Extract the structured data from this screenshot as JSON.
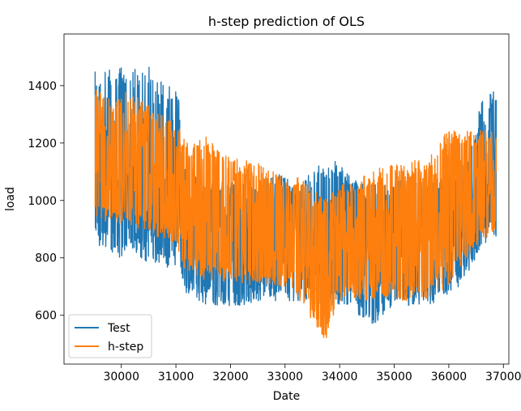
{
  "chart_data": {
    "type": "line",
    "title": "h-step prediction of OLS",
    "xlabel": "Date",
    "ylabel": "load",
    "xlim": [
      28950,
      37100
    ],
    "ylim": [
      430,
      1580
    ],
    "xticks": [
      30000,
      31000,
      32000,
      33000,
      34000,
      35000,
      36000,
      37000
    ],
    "yticks": [
      600,
      800,
      1000,
      1200,
      1400
    ],
    "grid": false,
    "legend": {
      "location": "lower left",
      "entries": [
        "Test",
        "h-step"
      ]
    },
    "series": [
      {
        "name": "Test",
        "color": "#1f77b4",
        "x_start": 29520,
        "x_end": 36870,
        "envelope": [
          {
            "x": 29520,
            "lo": 860,
            "hi": 1450
          },
          {
            "x": 29700,
            "lo": 820,
            "hi": 1480
          },
          {
            "x": 30000,
            "lo": 800,
            "hi": 1470
          },
          {
            "x": 30200,
            "lo": 830,
            "hi": 1460
          },
          {
            "x": 30400,
            "lo": 790,
            "hi": 1490
          },
          {
            "x": 30700,
            "lo": 780,
            "hi": 1420
          },
          {
            "x": 30900,
            "lo": 760,
            "hi": 1410
          },
          {
            "x": 31050,
            "lo": 760,
            "hi": 1400
          },
          {
            "x": 31150,
            "lo": 680,
            "hi": 1120
          },
          {
            "x": 31500,
            "lo": 640,
            "hi": 1080
          },
          {
            "x": 32000,
            "lo": 630,
            "hi": 1060
          },
          {
            "x": 32500,
            "lo": 640,
            "hi": 1060
          },
          {
            "x": 32900,
            "lo": 650,
            "hi": 1100
          },
          {
            "x": 33200,
            "lo": 650,
            "hi": 1050
          },
          {
            "x": 33500,
            "lo": 640,
            "hi": 1100
          },
          {
            "x": 33800,
            "lo": 630,
            "hi": 1180
          },
          {
            "x": 34200,
            "lo": 640,
            "hi": 1080
          },
          {
            "x": 34550,
            "lo": 540,
            "hi": 1060
          },
          {
            "x": 34900,
            "lo": 620,
            "hi": 1060
          },
          {
            "x": 35300,
            "lo": 630,
            "hi": 1080
          },
          {
            "x": 35700,
            "lo": 640,
            "hi": 1090
          },
          {
            "x": 36100,
            "lo": 680,
            "hi": 1100
          },
          {
            "x": 36400,
            "lo": 760,
            "hi": 1180
          },
          {
            "x": 36600,
            "lo": 850,
            "hi": 1350
          },
          {
            "x": 36870,
            "lo": 860,
            "hi": 1400
          }
        ]
      },
      {
        "name": "h-step",
        "color": "#ff7f0e",
        "x_start": 29520,
        "x_end": 36870,
        "envelope": [
          {
            "x": 29520,
            "lo": 940,
            "hi": 1400
          },
          {
            "x": 29800,
            "lo": 920,
            "hi": 1350
          },
          {
            "x": 30100,
            "lo": 900,
            "hi": 1380
          },
          {
            "x": 30400,
            "lo": 900,
            "hi": 1350
          },
          {
            "x": 30700,
            "lo": 870,
            "hi": 1300
          },
          {
            "x": 31000,
            "lo": 850,
            "hi": 1280
          },
          {
            "x": 31200,
            "lo": 740,
            "hi": 1200
          },
          {
            "x": 31500,
            "lo": 720,
            "hi": 1230
          },
          {
            "x": 32000,
            "lo": 720,
            "hi": 1150
          },
          {
            "x": 32500,
            "lo": 700,
            "hi": 1130
          },
          {
            "x": 33000,
            "lo": 700,
            "hi": 1080
          },
          {
            "x": 33400,
            "lo": 620,
            "hi": 1080
          },
          {
            "x": 33700,
            "lo": 490,
            "hi": 1000
          },
          {
            "x": 34000,
            "lo": 650,
            "hi": 1050
          },
          {
            "x": 34400,
            "lo": 650,
            "hi": 1080
          },
          {
            "x": 34800,
            "lo": 660,
            "hi": 1120
          },
          {
            "x": 35200,
            "lo": 650,
            "hi": 1130
          },
          {
            "x": 35600,
            "lo": 660,
            "hi": 1150
          },
          {
            "x": 36000,
            "lo": 700,
            "hi": 1250
          },
          {
            "x": 36400,
            "lo": 820,
            "hi": 1240
          },
          {
            "x": 36870,
            "lo": 900,
            "hi": 1260
          }
        ]
      }
    ]
  }
}
